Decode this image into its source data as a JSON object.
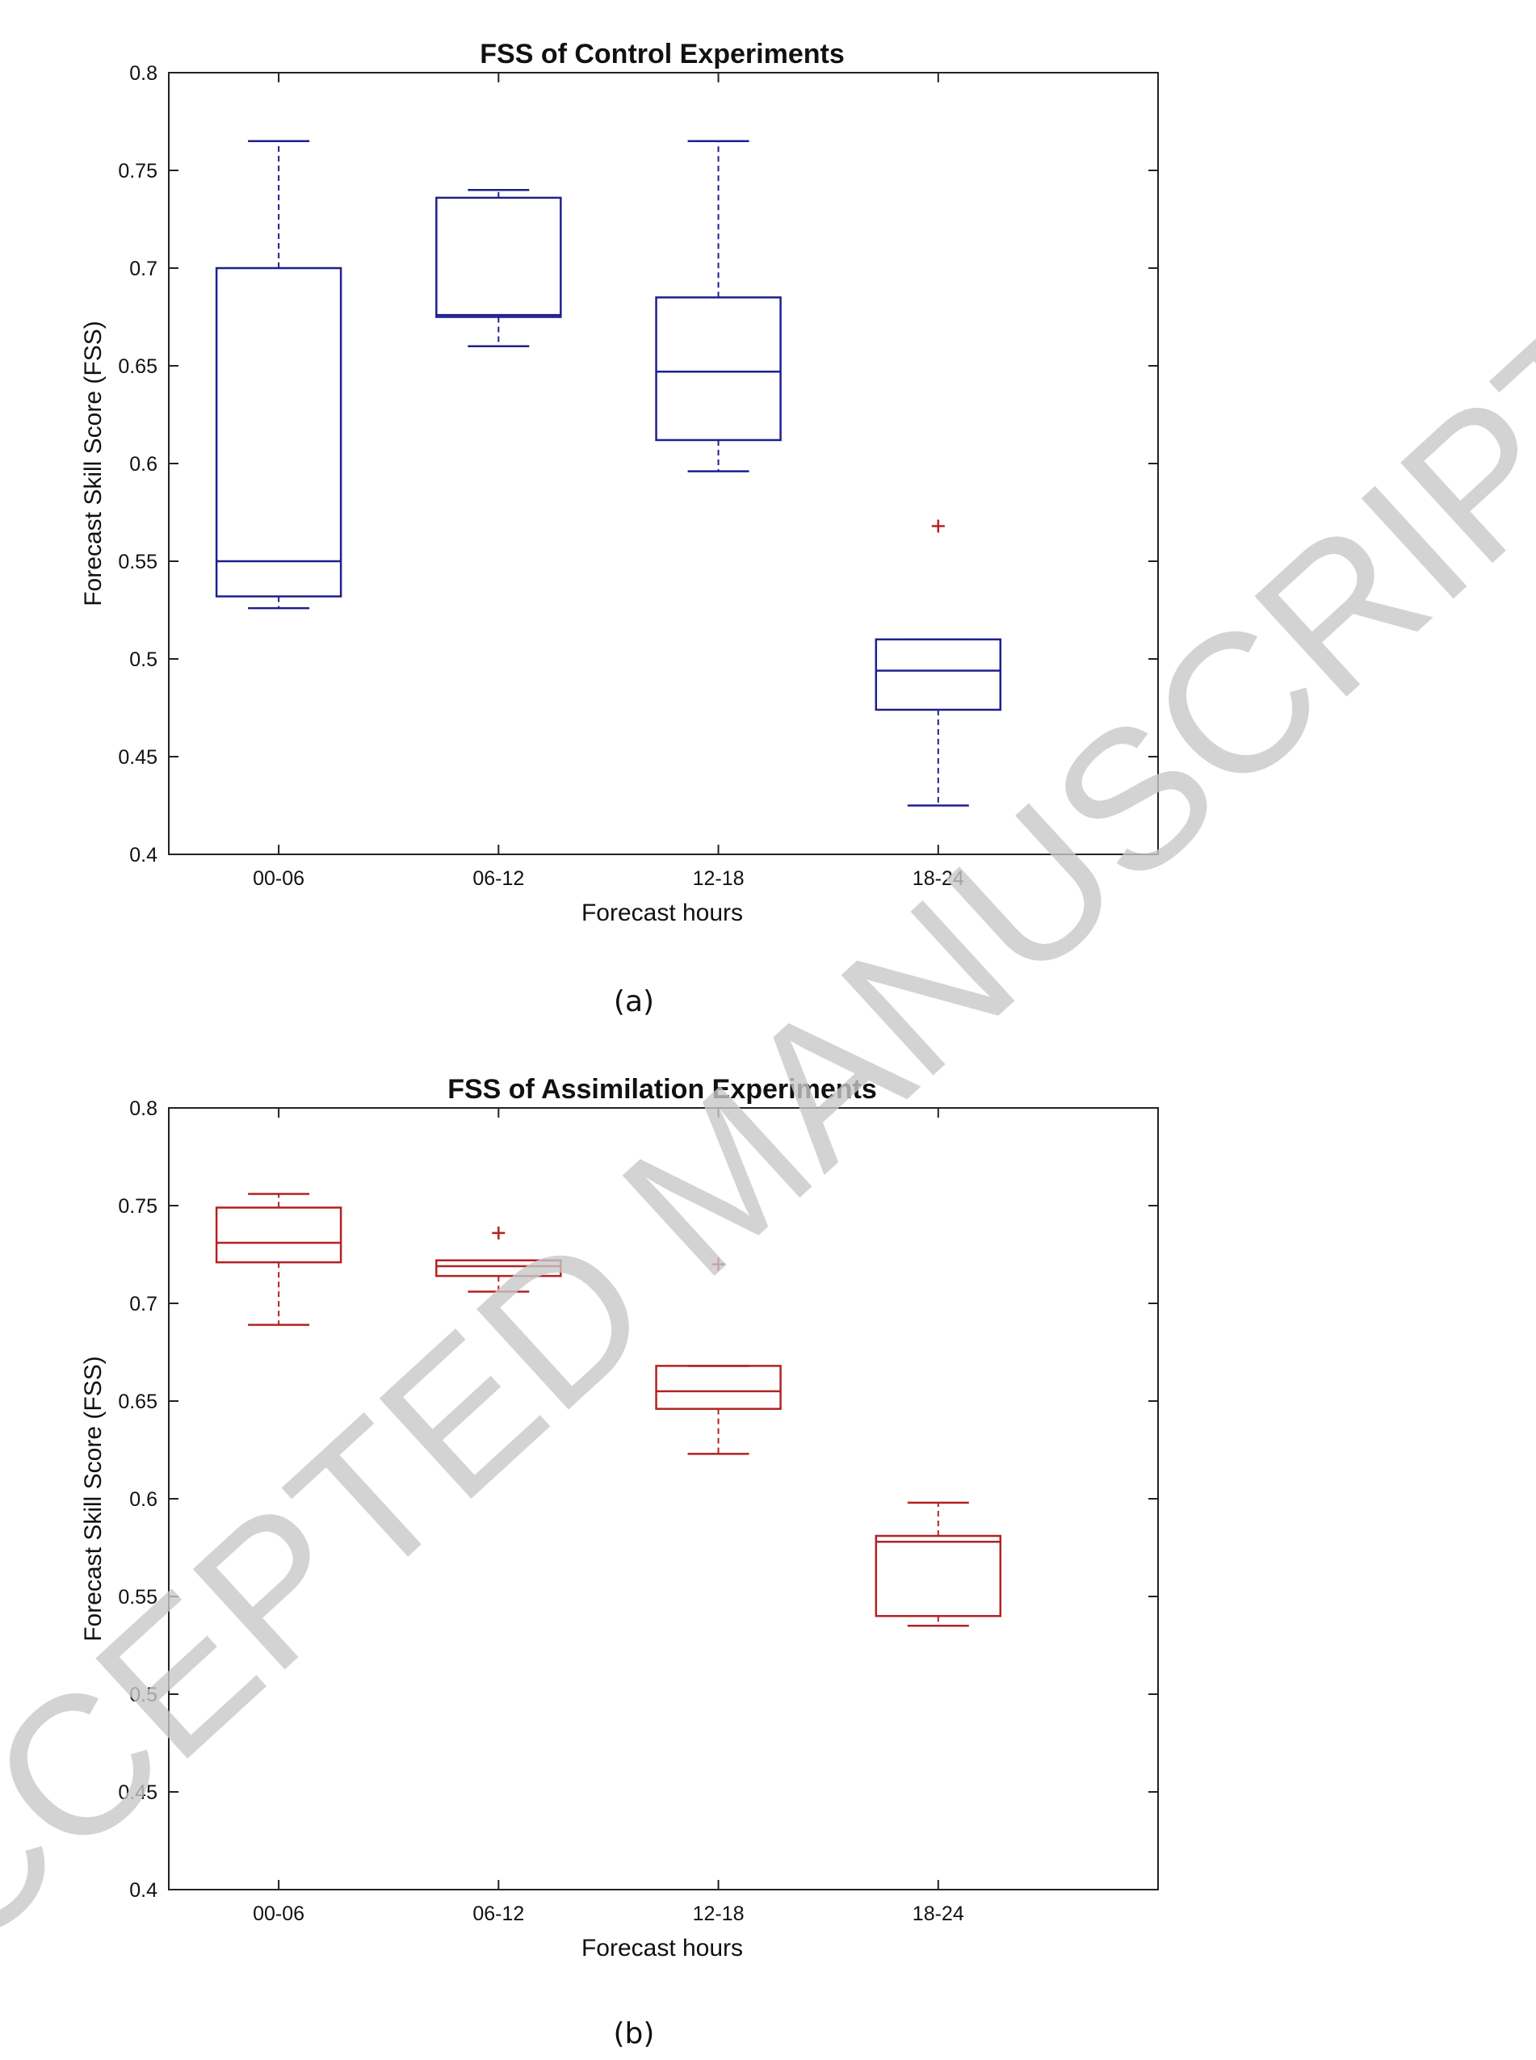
{
  "watermark": "ACCEPTED MANUSCRIPT",
  "colors": {
    "control": "#1f1f8f",
    "assimilation": "#b22222",
    "outlier": "#b22222",
    "axes": "#222222",
    "watermark": "#c8c8c8"
  },
  "chart_data": [
    {
      "type": "box",
      "caption": "(a)",
      "title": "FSS of Control Experiments",
      "xlabel": "Forecast hours",
      "ylabel": "Forecast Skill Score (FSS)",
      "categories": [
        "00-06",
        "06-12",
        "12-18",
        "18-24"
      ],
      "ylim": [
        0.4,
        0.8
      ],
      "yticks": [
        0.4,
        0.45,
        0.5,
        0.55,
        0.6,
        0.65,
        0.7,
        0.75,
        0.8
      ],
      "ytick_labels": [
        "0.4",
        "0.45",
        "0.5",
        "0.55",
        "0.6",
        "0.65",
        "0.7",
        "0.75",
        "0.8"
      ],
      "color_key": "control",
      "boxes": [
        {
          "category": "00-06",
          "whisker_low": 0.526,
          "q1": 0.532,
          "median": 0.55,
          "q3": 0.7,
          "whisker_high": 0.765,
          "outliers": []
        },
        {
          "category": "06-12",
          "whisker_low": 0.66,
          "q1": 0.675,
          "median": 0.676,
          "q3": 0.736,
          "whisker_high": 0.74,
          "outliers": []
        },
        {
          "category": "12-18",
          "whisker_low": 0.596,
          "q1": 0.612,
          "median": 0.647,
          "q3": 0.685,
          "whisker_high": 0.765,
          "outliers": []
        },
        {
          "category": "18-24",
          "whisker_low": 0.425,
          "q1": 0.474,
          "median": 0.494,
          "q3": 0.51,
          "whisker_high": 0.51,
          "outliers": [
            0.568
          ]
        }
      ],
      "grid": false
    },
    {
      "type": "box",
      "caption": "(b)",
      "title": "FSS of Assimilation Experiments",
      "xlabel": "Forecast hours",
      "ylabel": "Forecast Skill Score (FSS)",
      "categories": [
        "00-06",
        "06-12",
        "12-18",
        "18-24"
      ],
      "ylim": [
        0.4,
        0.8
      ],
      "yticks": [
        0.4,
        0.45,
        0.5,
        0.55,
        0.6,
        0.65,
        0.7,
        0.75,
        0.8
      ],
      "ytick_labels": [
        "0.4",
        "0.45",
        "0.5",
        "0.55",
        "0.6",
        "0.65",
        "0.7",
        "0.75",
        "0.8"
      ],
      "color_key": "assimilation",
      "boxes": [
        {
          "category": "00-06",
          "whisker_low": 0.689,
          "q1": 0.721,
          "median": 0.731,
          "q3": 0.749,
          "whisker_high": 0.756,
          "outliers": []
        },
        {
          "category": "06-12",
          "whisker_low": 0.706,
          "q1": 0.714,
          "median": 0.719,
          "q3": 0.722,
          "whisker_high": 0.722,
          "outliers": [
            0.736
          ]
        },
        {
          "category": "12-18",
          "whisker_low": 0.623,
          "q1": 0.646,
          "median": 0.655,
          "q3": 0.668,
          "whisker_high": 0.668,
          "outliers": [
            0.72
          ]
        },
        {
          "category": "18-24",
          "whisker_low": 0.535,
          "q1": 0.54,
          "median": 0.578,
          "q3": 0.581,
          "whisker_high": 0.598,
          "outliers": []
        }
      ],
      "grid": false
    }
  ]
}
